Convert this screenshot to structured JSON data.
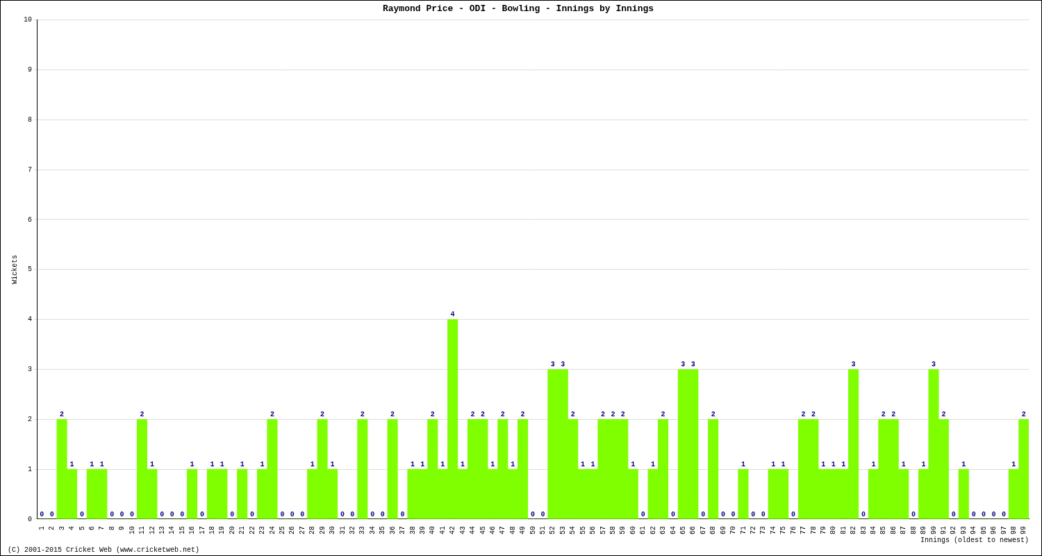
{
  "chart_data": {
    "type": "bar",
    "title": "Raymond Price - ODI - Bowling - Innings by Innings",
    "footer": "(C) 2001-2015 Cricket Web (www.cricketweb.net)",
    "x_label": "Innings (oldest to newest)",
    "y_label": "Wickets",
    "categories": [
      "1",
      "2",
      "3",
      "4",
      "5",
      "6",
      "7",
      "8",
      "9",
      "10",
      "11",
      "12",
      "13",
      "14",
      "15",
      "16",
      "17",
      "18",
      "19",
      "20",
      "21",
      "22",
      "23",
      "24",
      "25",
      "26",
      "27",
      "28",
      "29",
      "30",
      "31",
      "32",
      "33",
      "34",
      "35",
      "36",
      "37",
      "38",
      "39",
      "40",
      "41",
      "42",
      "43",
      "44",
      "45",
      "46",
      "47",
      "48",
      "49",
      "50",
      "51",
      "52",
      "53",
      "54",
      "55",
      "56",
      "57",
      "58",
      "59",
      "60",
      "61",
      "62",
      "63",
      "64",
      "65",
      "66",
      "67",
      "68",
      "69",
      "70",
      "71",
      "72",
      "73",
      "74",
      "75",
      "76",
      "77",
      "78",
      "79",
      "80",
      "81",
      "82",
      "83",
      "84",
      "85",
      "86",
      "87",
      "88",
      "89",
      "90",
      "91",
      "92",
      "93",
      "94",
      "95",
      "96",
      "97",
      "98",
      "99"
    ],
    "values": [
      0,
      0,
      2,
      1,
      0,
      1,
      1,
      0,
      0,
      0,
      2,
      1,
      0,
      0,
      0,
      1,
      0,
      1,
      1,
      0,
      1,
      0,
      1,
      2,
      0,
      0,
      0,
      1,
      2,
      1,
      0,
      0,
      2,
      0,
      0,
      2,
      0,
      1,
      1,
      2,
      1,
      4,
      1,
      2,
      2,
      1,
      2,
      1,
      2,
      0,
      0,
      3,
      3,
      2,
      1,
      1,
      2,
      2,
      2,
      1,
      0,
      1,
      2,
      0,
      3,
      3,
      0,
      2,
      0,
      0,
      1,
      0,
      0,
      1,
      1,
      0,
      2,
      2,
      1,
      1,
      1,
      3,
      0,
      1,
      2,
      2,
      1,
      0,
      1,
      3,
      2,
      0,
      1,
      0,
      0,
      0,
      0,
      1,
      2
    ],
    "color": "#80ff00",
    "ylim": [
      0,
      10
    ],
    "yticks": [
      0,
      1,
      2,
      3,
      4,
      5,
      6,
      7,
      8,
      9,
      10
    ],
    "grid": true,
    "data_labels": true
  }
}
